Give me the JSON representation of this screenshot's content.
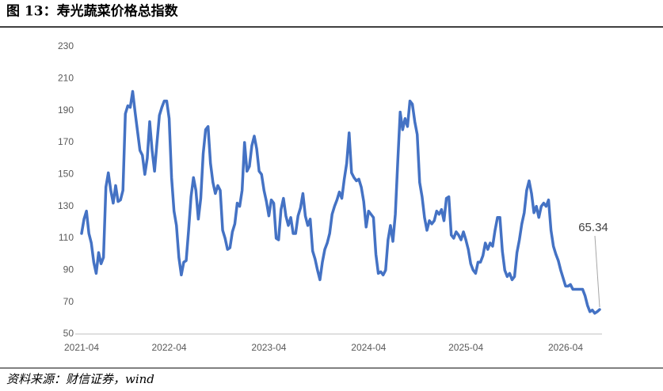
{
  "chart_data": {
    "type": "line",
    "title": "图 13：寿光蔬菜价格总指数",
    "source": "资料来源：财信证券，wind",
    "categories": [
      "2021-04",
      null,
      null,
      null,
      null,
      null,
      null,
      null,
      null,
      null,
      null,
      null,
      null,
      null,
      null,
      null,
      null,
      null,
      null,
      null,
      null,
      null,
      null,
      null,
      null,
      null,
      null,
      null,
      null,
      null,
      null,
      null,
      null,
      null,
      null,
      null,
      "2022-04",
      null,
      null,
      null,
      null,
      null,
      null,
      null,
      null,
      null,
      null,
      null,
      null,
      null,
      null,
      null,
      null,
      null,
      null,
      null,
      null,
      null,
      null,
      null,
      null,
      null,
      null,
      null,
      null,
      null,
      null,
      null,
      null,
      null,
      null,
      null,
      null,
      null,
      null,
      null,
      null,
      "2023-04",
      null,
      null,
      null,
      null,
      null,
      null,
      null,
      null,
      null,
      null,
      null,
      null,
      null,
      null,
      null,
      null,
      null,
      null,
      null,
      null,
      null,
      null,
      null,
      null,
      null,
      null,
      null,
      null,
      null,
      null,
      null,
      null,
      null,
      null,
      null,
      null,
      null,
      null,
      null,
      null,
      "2024-04",
      null,
      null,
      null,
      null,
      null,
      null,
      null,
      null,
      null,
      null,
      null,
      null,
      null,
      null,
      null,
      null,
      null,
      null,
      null,
      null,
      null,
      null,
      null,
      null,
      null,
      null,
      null,
      null,
      null,
      null,
      null,
      null,
      null,
      null,
      null,
      null,
      null,
      null,
      null,
      "2025-04",
      null,
      null,
      null,
      null,
      null,
      null,
      null,
      null,
      null,
      null,
      null,
      null,
      null,
      null,
      null,
      null,
      null,
      null,
      null,
      null,
      null,
      null,
      null,
      null,
      null,
      null,
      null,
      null,
      null,
      null,
      null,
      null,
      null,
      null,
      null,
      null,
      null,
      null,
      null,
      null,
      "2026-04",
      null,
      null,
      null,
      null,
      null,
      null,
      null,
      null,
      null,
      null,
      null,
      null,
      null,
      null
    ],
    "series": [
      {
        "color": "#4472c4",
        "values": [
          113,
          122,
          127,
          113,
          107,
          95,
          88,
          101,
          94,
          98,
          142,
          151,
          140,
          132,
          143,
          133,
          134,
          140,
          188,
          193,
          192,
          202,
          189,
          177,
          165,
          162,
          150,
          160,
          183,
          165,
          152,
          170,
          187,
          192,
          196,
          196,
          185,
          148,
          127,
          118,
          98,
          87,
          95,
          96,
          115,
          136,
          148,
          140,
          122,
          135,
          163,
          178,
          180,
          157,
          145,
          138,
          143,
          140,
          115,
          110,
          103,
          104,
          114,
          119,
          132,
          130,
          140,
          170,
          152,
          155,
          168,
          174,
          166,
          152,
          150,
          140,
          133,
          124,
          134,
          132,
          110,
          109,
          128,
          135,
          124,
          118,
          123,
          113,
          113,
          124,
          129,
          138,
          124,
          118,
          122,
          102,
          97,
          90,
          84,
          95,
          103,
          107,
          113,
          125,
          130,
          134,
          139,
          135,
          147,
          157,
          176,
          151,
          148,
          146,
          147,
          142,
          133,
          117,
          127,
          125,
          123,
          100,
          88,
          89,
          87,
          90,
          109,
          118,
          108,
          125,
          158,
          189,
          178,
          185,
          180,
          196,
          194,
          183,
          175,
          145,
          136,
          123,
          115,
          121,
          119,
          121,
          127,
          125,
          128,
          121,
          135,
          136,
          112,
          110,
          114,
          112,
          109,
          114,
          109,
          103,
          94,
          90,
          88,
          95,
          95,
          99,
          107,
          103,
          107,
          105,
          115,
          123,
          123,
          102,
          90,
          86,
          88,
          84,
          86,
          101,
          109,
          119,
          126,
          140,
          146,
          138,
          126,
          130,
          123,
          130,
          132,
          130,
          134,
          115,
          105,
          100,
          96,
          90,
          85,
          80,
          80,
          81,
          78,
          78,
          78,
          78,
          78,
          74,
          68,
          64,
          65,
          63,
          64,
          65.34
        ]
      }
    ],
    "ylim": [
      50,
      230
    ],
    "yticks": [
      50,
      70,
      90,
      110,
      130,
      150,
      170,
      190,
      210,
      230
    ],
    "grid": false
  }
}
